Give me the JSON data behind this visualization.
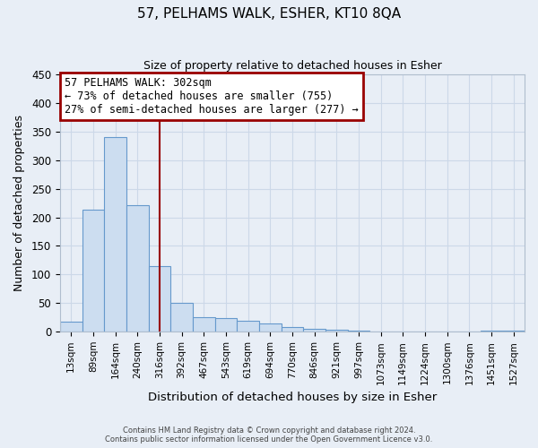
{
  "title": "57, PELHAMS WALK, ESHER, KT10 8QA",
  "subtitle": "Size of property relative to detached houses in Esher",
  "xlabel": "Distribution of detached houses by size in Esher",
  "ylabel": "Number of detached properties",
  "bar_labels": [
    "13sqm",
    "89sqm",
    "164sqm",
    "240sqm",
    "316sqm",
    "392sqm",
    "467sqm",
    "543sqm",
    "619sqm",
    "694sqm",
    "770sqm",
    "846sqm",
    "921sqm",
    "997sqm",
    "1073sqm",
    "1149sqm",
    "1224sqm",
    "1300sqm",
    "1376sqm",
    "1451sqm",
    "1527sqm"
  ],
  "bar_values": [
    17,
    213,
    340,
    221,
    114,
    50,
    26,
    24,
    19,
    15,
    8,
    5,
    3,
    2,
    0,
    0,
    0,
    0,
    0,
    2,
    2
  ],
  "bar_color": "#ccddf0",
  "bar_edge_color": "#6699cc",
  "ylim": [
    0,
    450
  ],
  "yticks": [
    0,
    50,
    100,
    150,
    200,
    250,
    300,
    350,
    400,
    450
  ],
  "vline_x_index": 4,
  "vline_color": "#990000",
  "annotation_title": "57 PELHAMS WALK: 302sqm",
  "annotation_line1": "← 73% of detached houses are smaller (755)",
  "annotation_line2": "27% of semi-detached houses are larger (277) →",
  "annotation_box_edgecolor": "#990000",
  "annotation_bg_color": "#ffffff",
  "grid_color": "#ccd8e8",
  "bg_color": "#e8eef6",
  "footer1": "Contains HM Land Registry data © Crown copyright and database right 2024.",
  "footer2": "Contains public sector information licensed under the Open Government Licence v3.0."
}
